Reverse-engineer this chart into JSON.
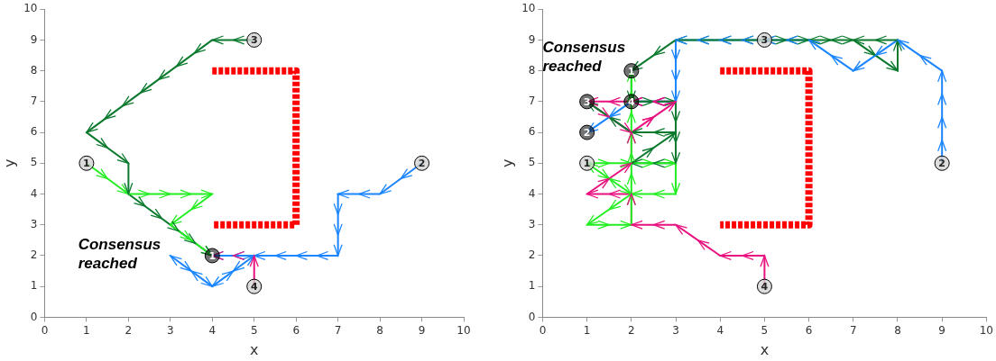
{
  "chart_data": [
    {
      "type": "line",
      "xlabel": "x",
      "ylabel": "y",
      "xlim": [
        0,
        10
      ],
      "ylim": [
        0,
        10
      ],
      "xticks": [
        0,
        1,
        2,
        3,
        4,
        5,
        6,
        7,
        8,
        9,
        10
      ],
      "yticks": [
        0,
        1,
        2,
        3,
        4,
        5,
        6,
        7,
        8,
        9,
        10
      ],
      "grid": false,
      "legend": false,
      "marker": "none",
      "series": [
        {
          "color": "#ff0000",
          "line_style": "dotted",
          "x": [
            4,
            6,
            6,
            4
          ],
          "values": [
            8,
            8,
            3,
            3
          ]
        },
        {
          "color": "#22ee22",
          "x": [
            1,
            2,
            4,
            3,
            4
          ],
          "values": [
            5,
            4,
            4,
            3,
            2
          ]
        },
        {
          "color": "#0b7a2e",
          "x": [
            5,
            4,
            1,
            2,
            2,
            4
          ],
          "values": [
            9,
            9,
            6,
            5,
            4,
            2
          ]
        },
        {
          "color": "#1a85ff",
          "x": [
            9,
            8,
            7,
            7,
            5,
            4,
            3,
            4,
            5,
            4
          ],
          "values": [
            5,
            4,
            4,
            2,
            2,
            1,
            2,
            1,
            2,
            2
          ]
        },
        {
          "color": "#e8117f",
          "x": [
            5,
            5,
            4
          ],
          "values": [
            1,
            2,
            2
          ]
        }
      ],
      "annotations": [
        "Consensus reached",
        {
          "text": "1",
          "x": 1,
          "y": 5
        },
        {
          "text": "2",
          "x": 9,
          "y": 5
        },
        {
          "text": "3",
          "x": 5,
          "y": 9
        },
        {
          "text": "4",
          "x": 5,
          "y": 1
        },
        {
          "text": "1",
          "x": 4,
          "y": 2
        }
      ]
    },
    {
      "type": "line",
      "xlabel": "x",
      "ylabel": "y",
      "xlim": [
        0,
        10
      ],
      "ylim": [
        0,
        10
      ],
      "xticks": [
        0,
        1,
        2,
        3,
        4,
        5,
        6,
        7,
        8,
        9,
        10
      ],
      "yticks": [
        0,
        1,
        2,
        3,
        4,
        5,
        6,
        7,
        8,
        9,
        10
      ],
      "grid": false,
      "legend": false,
      "marker": "none",
      "series": [
        {
          "color": "#ff0000",
          "line_style": "dotted",
          "x": [
            4,
            6,
            6,
            4
          ],
          "values": [
            8,
            8,
            3,
            3
          ]
        },
        {
          "color": "#22ee22",
          "x": [
            1,
            3,
            3,
            2,
            1,
            2,
            2,
            1,
            2,
            2
          ],
          "values": [
            5,
            5,
            4,
            4,
            3,
            3,
            4,
            5,
            4,
            8
          ]
        },
        {
          "color": "#0b7a2e",
          "x": [
            5,
            7,
            8,
            8,
            3,
            2,
            2,
            3,
            3,
            2,
            3,
            2,
            1
          ],
          "values": [
            9,
            9,
            8,
            9,
            9,
            8,
            7,
            7,
            5,
            5,
            6,
            6,
            7
          ]
        },
        {
          "color": "#1a85ff",
          "x": [
            9,
            9,
            8,
            7,
            6,
            3,
            3,
            2,
            1
          ],
          "values": [
            5,
            8,
            9,
            8,
            9,
            9,
            7,
            7,
            6
          ]
        },
        {
          "color": "#e8117f",
          "x": [
            5,
            5,
            4,
            3,
            2,
            2,
            1,
            2,
            2,
            3,
            1,
            2,
            3,
            2
          ],
          "values": [
            1,
            2,
            2,
            3,
            3,
            4,
            4,
            5,
            6,
            7,
            7,
            6,
            7,
            7
          ]
        }
      ],
      "annotations": [
        "Consensus reached",
        {
          "text": "1",
          "x": 1,
          "y": 5
        },
        {
          "text": "2",
          "x": 9,
          "y": 5
        },
        {
          "text": "3",
          "x": 5,
          "y": 9
        },
        {
          "text": "4",
          "x": 5,
          "y": 1
        },
        {
          "text": "1",
          "x": 2,
          "y": 8
        },
        {
          "text": "2",
          "x": 1,
          "y": 6
        },
        {
          "text": "3",
          "x": 1,
          "y": 7
        },
        {
          "text": "4",
          "x": 2,
          "y": 7
        }
      ]
    }
  ]
}
